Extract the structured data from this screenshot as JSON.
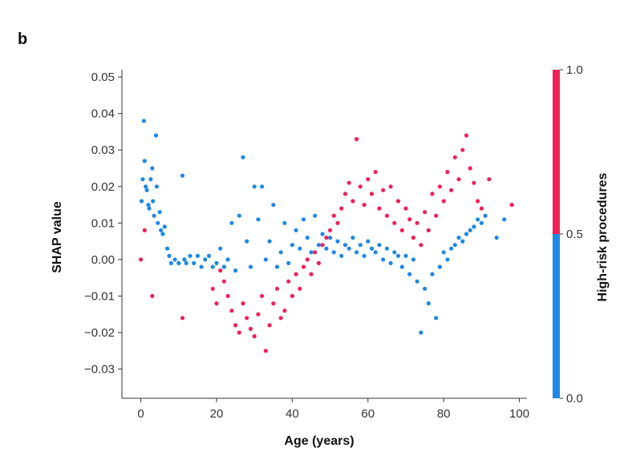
{
  "panel_label": "b",
  "chart_data": {
    "type": "scatter",
    "xlabel": "Age (years)",
    "ylabel": "SHAP value",
    "xlim": [
      -5,
      102
    ],
    "ylim": [
      -0.038,
      0.052
    ],
    "x_ticks": [
      0,
      20,
      40,
      60,
      80,
      100
    ],
    "x_tick_labels": [
      "0",
      "20",
      "40",
      "60",
      "80",
      "100"
    ],
    "y_ticks": [
      0.05,
      0.04,
      0.03,
      0.02,
      0.01,
      0.0,
      -0.01,
      -0.02,
      -0.03
    ],
    "y_tick_labels": [
      "0.05",
      "0.04",
      "0.03",
      "0.02",
      "0.01",
      "0.00",
      "−0.01",
      "−0.02",
      "−0.03"
    ],
    "grid": false,
    "colorbar": {
      "label": "High-risk procedures",
      "ticks": [
        "1.0",
        "0.5",
        "0.0"
      ],
      "high_color": "#f0205a",
      "low_color": "#1e88e5"
    },
    "series": [
      {
        "color": "#1e88e5",
        "points": [
          [
            0.2,
            0.016
          ],
          [
            0.5,
            0.022
          ],
          [
            0.8,
            0.038
          ],
          [
            1.0,
            0.027
          ],
          [
            1.3,
            0.02
          ],
          [
            1.6,
            0.019
          ],
          [
            2.0,
            0.015
          ],
          [
            2.2,
            0.014
          ],
          [
            2.6,
            0.022
          ],
          [
            3.0,
            0.025
          ],
          [
            3.2,
            0.016
          ],
          [
            3.5,
            0.012
          ],
          [
            4.0,
            0.034
          ],
          [
            4.2,
            0.02
          ],
          [
            4.5,
            0.01
          ],
          [
            5.0,
            0.013
          ],
          [
            5.3,
            0.008
          ],
          [
            5.8,
            0.007
          ],
          [
            6.3,
            0.009
          ],
          [
            7.0,
            0.003
          ],
          [
            7.5,
            0.001
          ],
          [
            8.0,
            -0.001
          ],
          [
            9.0,
            0.0
          ],
          [
            10.0,
            -0.001
          ],
          [
            11.0,
            0.023
          ],
          [
            11.5,
            0.0
          ],
          [
            12.0,
            -0.001
          ],
          [
            13.0,
            0.001
          ],
          [
            14.0,
            -0.001
          ],
          [
            15.0,
            0.001
          ],
          [
            16.0,
            -0.002
          ],
          [
            17.0,
            0.0
          ],
          [
            18.0,
            0.001
          ],
          [
            19.0,
            -0.002
          ],
          [
            20.0,
            -0.001
          ],
          [
            21.0,
            0.003
          ],
          [
            22.0,
            -0.002
          ],
          [
            23.0,
            0.0
          ],
          [
            24.0,
            0.01
          ],
          [
            25.0,
            -0.003
          ],
          [
            26.0,
            0.012
          ],
          [
            27.0,
            0.028
          ],
          [
            28.0,
            0.005
          ],
          [
            29.0,
            -0.002
          ],
          [
            30.0,
            0.02
          ],
          [
            31.0,
            0.011
          ],
          [
            32.0,
            0.02
          ],
          [
            33.0,
            0.0
          ],
          [
            34.0,
            0.005
          ],
          [
            35.0,
            0.015
          ],
          [
            36.0,
            -0.002
          ],
          [
            37.0,
            0.002
          ],
          [
            38.0,
            0.01
          ],
          [
            39.0,
            -0.001
          ],
          [
            40.0,
            0.004
          ],
          [
            41.0,
            0.008
          ],
          [
            42.0,
            0.003
          ],
          [
            43.0,
            0.011
          ],
          [
            44.0,
            0.006
          ],
          [
            45.0,
            0.002
          ],
          [
            46.0,
            0.012
          ],
          [
            47.0,
            0.004
          ],
          [
            48.0,
            0.007
          ],
          [
            49.0,
            0.003
          ],
          [
            50.0,
            0.006
          ],
          [
            51.0,
            0.002
          ],
          [
            52.0,
            0.005
          ],
          [
            53.0,
            0.001
          ],
          [
            54.0,
            0.004
          ],
          [
            55.0,
            0.003
          ],
          [
            56.0,
            0.006
          ],
          [
            57.0,
            0.002
          ],
          [
            58.0,
            0.004
          ],
          [
            59.0,
            0.001
          ],
          [
            60.0,
            0.005
          ],
          [
            61.0,
            0.003
          ],
          [
            62.0,
            0.002
          ],
          [
            63.0,
            0.004
          ],
          [
            64.0,
            0.0
          ],
          [
            65.0,
            0.003
          ],
          [
            66.0,
            -0.001
          ],
          [
            67.0,
            0.002
          ],
          [
            68.0,
            0.001
          ],
          [
            69.0,
            -0.002
          ],
          [
            70.0,
            0.001
          ],
          [
            71.0,
            -0.004
          ],
          [
            72.0,
            0.0
          ],
          [
            73.0,
            -0.006
          ],
          [
            74.0,
            -0.02
          ],
          [
            75.0,
            -0.008
          ],
          [
            76.0,
            -0.012
          ],
          [
            77.0,
            -0.004
          ],
          [
            78.0,
            -0.016
          ],
          [
            79.0,
            -0.002
          ],
          [
            80.0,
            0.002
          ],
          [
            81.0,
            0.0
          ],
          [
            82.0,
            0.003
          ],
          [
            83.0,
            0.004
          ],
          [
            84.0,
            0.006
          ],
          [
            85.0,
            0.005
          ],
          [
            86.0,
            0.007
          ],
          [
            87.0,
            0.008
          ],
          [
            88.0,
            0.009
          ],
          [
            89.0,
            0.011
          ],
          [
            90.0,
            0.01
          ],
          [
            91.0,
            0.012
          ],
          [
            94.0,
            0.006
          ],
          [
            96.0,
            0.011
          ]
        ]
      },
      {
        "color": "#f0205a",
        "points": [
          [
            0.0,
            0.0
          ],
          [
            1.0,
            0.008
          ],
          [
            3.0,
            -0.01
          ],
          [
            11.0,
            -0.016
          ],
          [
            19.0,
            -0.008
          ],
          [
            20.0,
            -0.012
          ],
          [
            21.0,
            -0.003
          ],
          [
            22.0,
            -0.006
          ],
          [
            23.0,
            -0.01
          ],
          [
            24.0,
            -0.014
          ],
          [
            25.0,
            -0.018
          ],
          [
            26.0,
            -0.02
          ],
          [
            27.0,
            -0.012
          ],
          [
            28.0,
            -0.016
          ],
          [
            29.0,
            -0.019
          ],
          [
            30.0,
            -0.021
          ],
          [
            31.0,
            -0.015
          ],
          [
            32.0,
            -0.01
          ],
          [
            33.0,
            -0.025
          ],
          [
            34.0,
            -0.018
          ],
          [
            35.0,
            -0.012
          ],
          [
            36.0,
            -0.008
          ],
          [
            37.0,
            -0.016
          ],
          [
            38.0,
            -0.014
          ],
          [
            39.0,
            -0.006
          ],
          [
            40.0,
            -0.01
          ],
          [
            41.0,
            -0.004
          ],
          [
            42.0,
            -0.008
          ],
          [
            43.0,
            -0.002
          ],
          [
            44.0,
            0.0
          ],
          [
            45.0,
            -0.004
          ],
          [
            46.0,
            0.002
          ],
          [
            47.0,
            -0.001
          ],
          [
            48.0,
            0.004
          ],
          [
            49.0,
            0.006
          ],
          [
            50.0,
            0.008
          ],
          [
            51.0,
            0.012
          ],
          [
            52.0,
            0.01
          ],
          [
            53.0,
            0.014
          ],
          [
            54.0,
            0.018
          ],
          [
            55.0,
            0.021
          ],
          [
            56.0,
            0.016
          ],
          [
            57.0,
            0.033
          ],
          [
            58.0,
            0.02
          ],
          [
            59.0,
            0.015
          ],
          [
            60.0,
            0.022
          ],
          [
            61.0,
            0.018
          ],
          [
            62.0,
            0.024
          ],
          [
            63.0,
            0.014
          ],
          [
            64.0,
            0.019
          ],
          [
            65.0,
            0.012
          ],
          [
            66.0,
            0.02
          ],
          [
            67.0,
            0.01
          ],
          [
            68.0,
            0.016
          ],
          [
            69.0,
            0.008
          ],
          [
            70.0,
            0.014
          ],
          [
            71.0,
            0.011
          ],
          [
            72.0,
            0.006
          ],
          [
            73.0,
            0.01
          ],
          [
            74.0,
            0.004
          ],
          [
            75.0,
            0.013
          ],
          [
            76.0,
            0.008
          ],
          [
            77.0,
            0.018
          ],
          [
            78.0,
            0.012
          ],
          [
            79.0,
            0.02
          ],
          [
            80.0,
            0.016
          ],
          [
            81.0,
            0.024
          ],
          [
            82.0,
            0.019
          ],
          [
            83.0,
            0.028
          ],
          [
            84.0,
            0.022
          ],
          [
            85.0,
            0.03
          ],
          [
            86.0,
            0.034
          ],
          [
            87.0,
            0.025
          ],
          [
            88.0,
            0.021
          ],
          [
            89.0,
            0.016
          ],
          [
            90.0,
            0.014
          ],
          [
            92.0,
            0.022
          ],
          [
            98.0,
            0.015
          ]
        ]
      }
    ]
  }
}
